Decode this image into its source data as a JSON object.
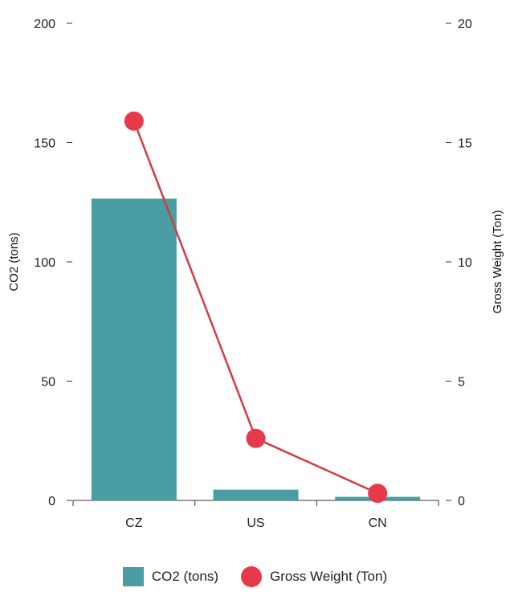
{
  "chart_data": {
    "type": "bar",
    "categories": [
      "CZ",
      "US",
      "CN"
    ],
    "series": [
      {
        "name": "CO2 (tons)",
        "type": "bar",
        "axis": "left",
        "values": [
          126.5,
          4.5,
          1.5
        ],
        "color": "#4a9ea3"
      },
      {
        "name": "Gross Weight (Ton)",
        "type": "line",
        "axis": "right",
        "values": [
          15.9,
          2.6,
          0.3
        ],
        "color": "#e63a4b",
        "line_color": "#d23b44"
      }
    ],
    "y_left": {
      "label": "CO2 (tons)",
      "range": [
        0,
        200
      ],
      "ticks": [
        "0",
        "50",
        "100",
        "150",
        "200"
      ]
    },
    "y_right": {
      "label": "Gross Weight (Ton)",
      "range": [
        0,
        20
      ],
      "ticks": [
        "0",
        "5",
        "10",
        "15",
        "20"
      ]
    },
    "grid": false,
    "legend_position": "bottom-center"
  }
}
